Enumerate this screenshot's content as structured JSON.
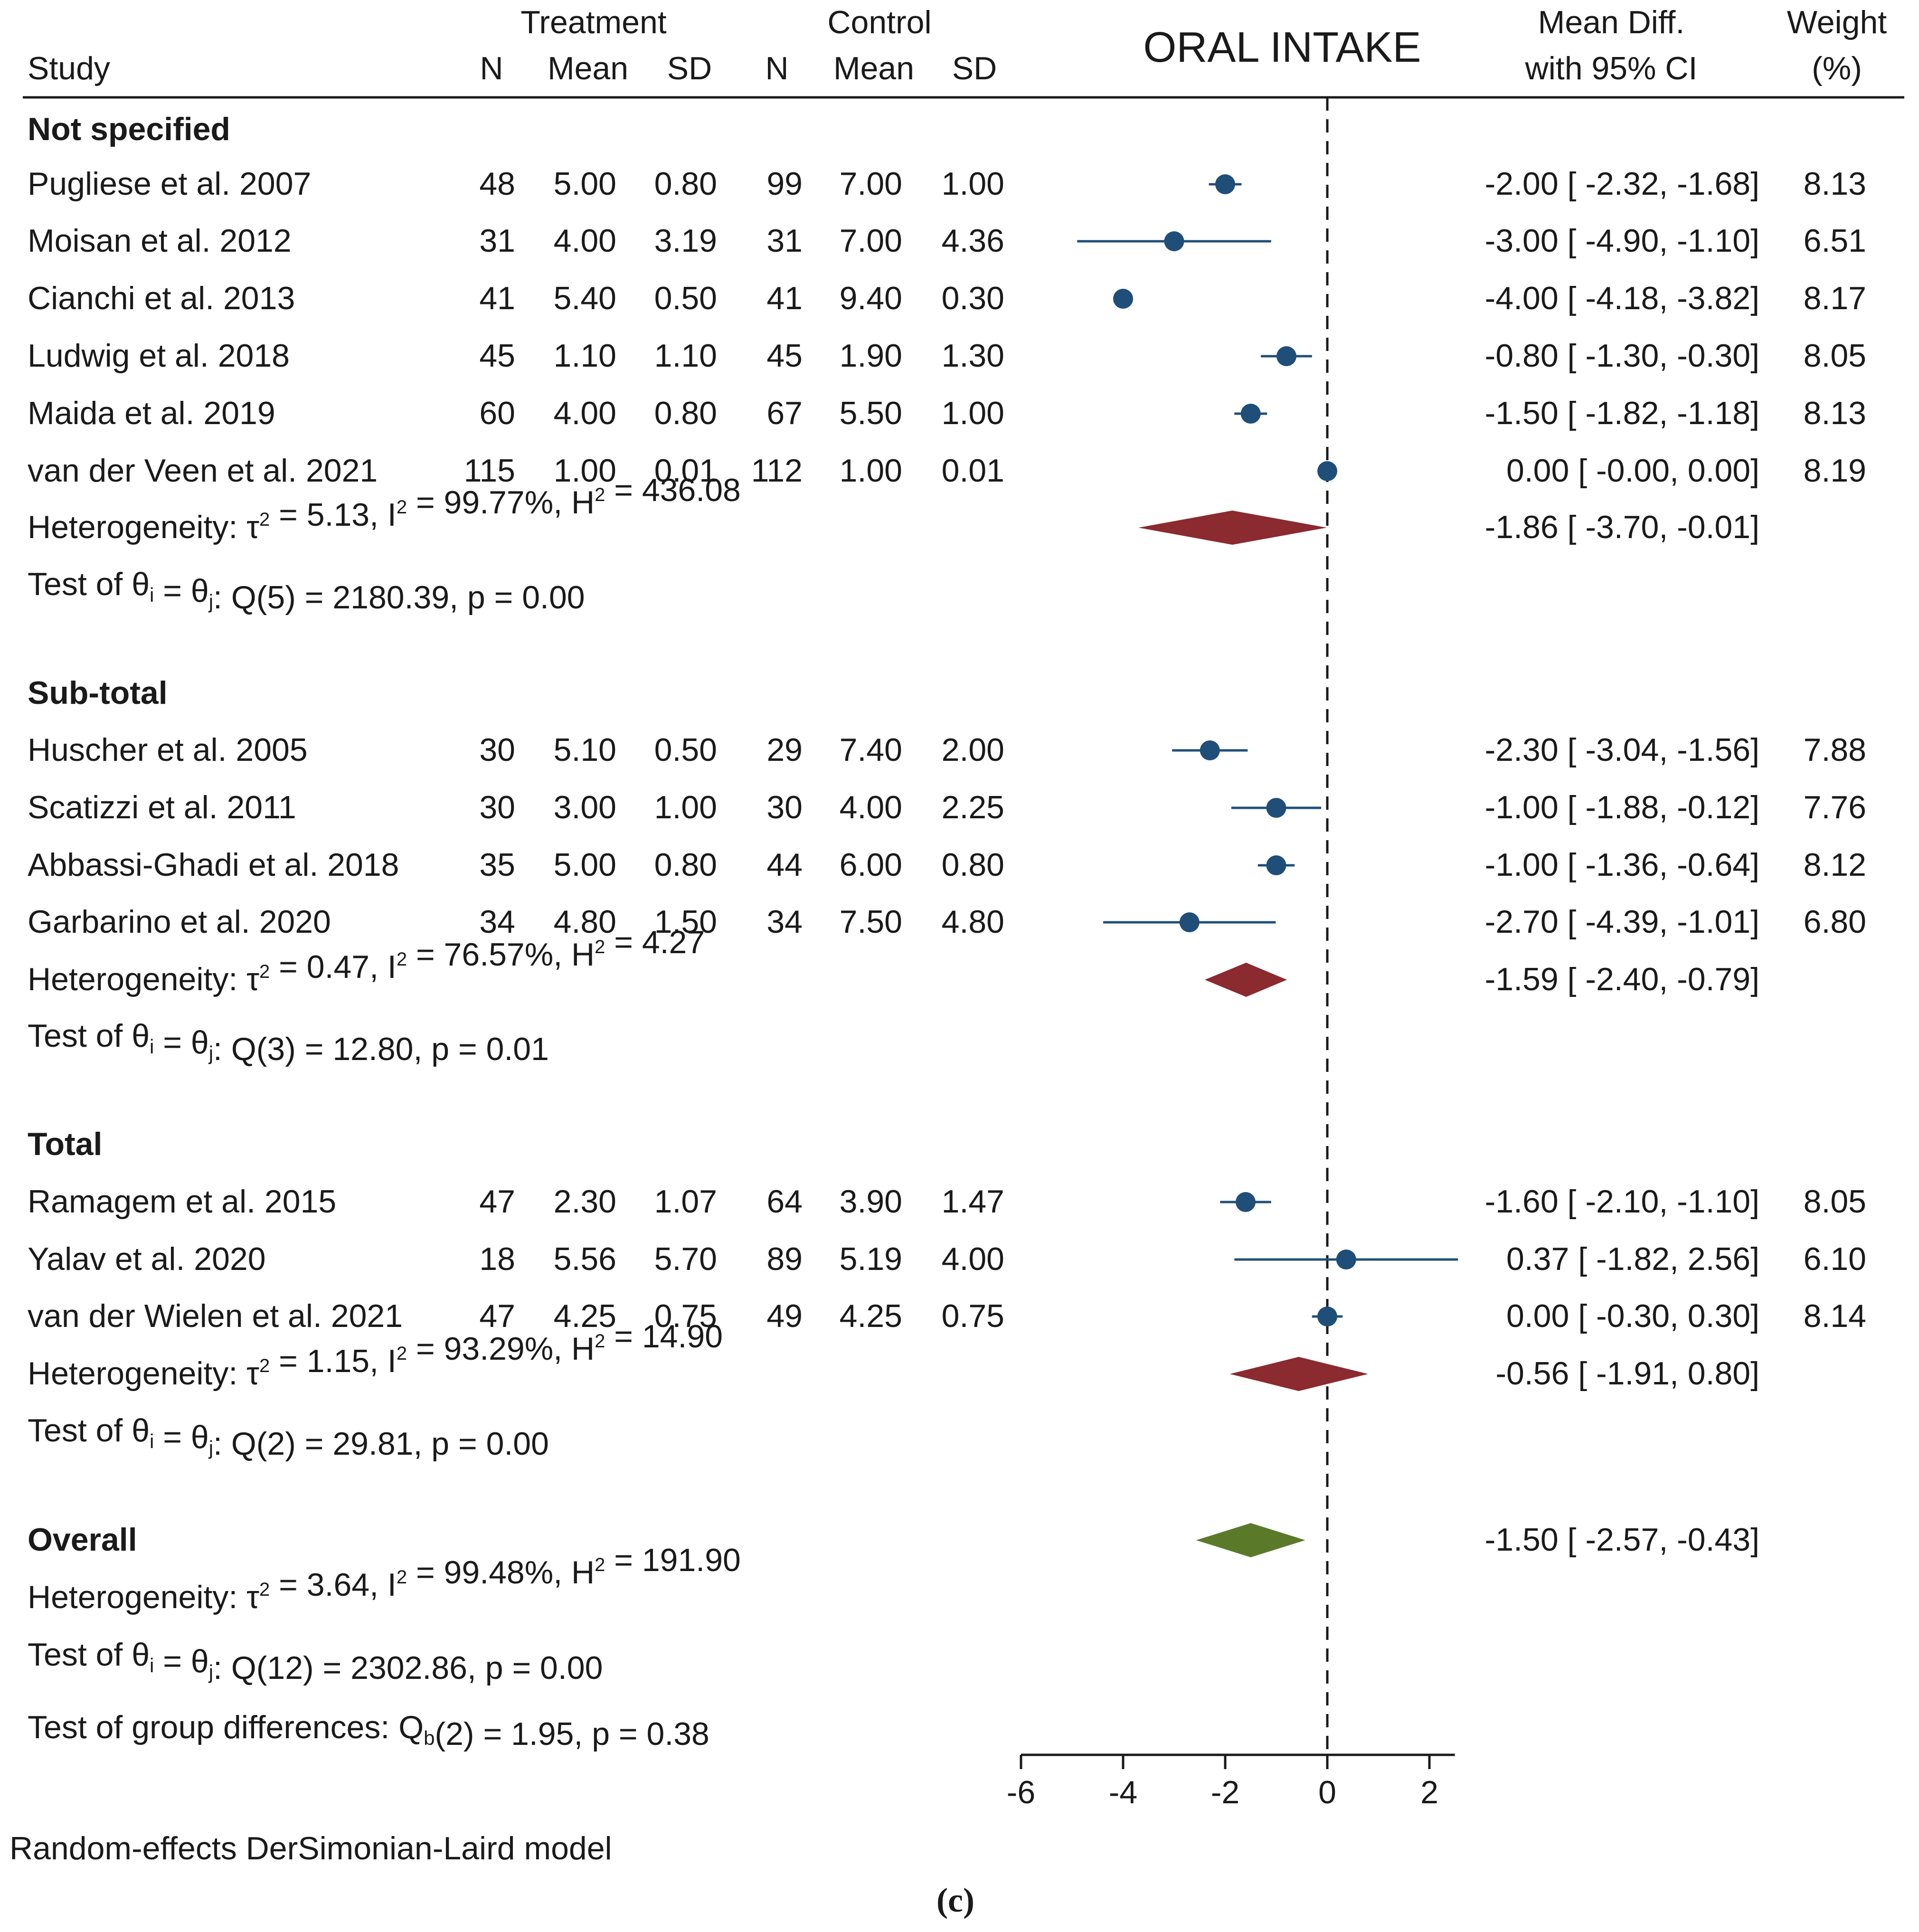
{
  "chart_data": {
    "type": "forest",
    "title": "ORAL INTAKE",
    "header": {
      "study": "Study",
      "treatment": "Treatment",
      "control": "Control",
      "n": "N",
      "mean": "Mean",
      "sd": "SD",
      "effect_line1": "Mean Diff.",
      "effect_line2": "with 95% CI",
      "weight_line1": "Weight",
      "weight_line2": "(%)"
    },
    "xaxis": {
      "ticks": [
        -6,
        -4,
        -2,
        0,
        2
      ],
      "tick_labels": [
        "-6",
        "-4",
        "-2",
        "0",
        "2"
      ],
      "range": [
        -6,
        2.5
      ],
      "null_line": 0
    },
    "groups": [
      {
        "name": "Not specified",
        "studies": [
          {
            "label": "Pugliese et al. 2007",
            "t_n": "48",
            "t_mean": "5.00",
            "t_sd": "0.80",
            "c_n": "99",
            "c_mean": "7.00",
            "c_sd": "1.00",
            "md": -2.0,
            "lo": -2.32,
            "hi": -1.68,
            "ci_text": "-2.00 [ -2.32,  -1.68]",
            "weight": "8.13"
          },
          {
            "label": "Moisan et al. 2012",
            "t_n": "31",
            "t_mean": "4.00",
            "t_sd": "3.19",
            "c_n": "31",
            "c_mean": "7.00",
            "c_sd": "4.36",
            "md": -3.0,
            "lo": -4.9,
            "hi": -1.1,
            "ci_text": "-3.00 [ -4.90,  -1.10]",
            "weight": "6.51"
          },
          {
            "label": "Cianchi et al. 2013",
            "t_n": "41",
            "t_mean": "5.40",
            "t_sd": "0.50",
            "c_n": "41",
            "c_mean": "9.40",
            "c_sd": "0.30",
            "md": -4.0,
            "lo": -4.18,
            "hi": -3.82,
            "ci_text": "-4.00 [ -4.18,  -3.82]",
            "weight": "8.17"
          },
          {
            "label": "Ludwig et al. 2018",
            "t_n": "45",
            "t_mean": "1.10",
            "t_sd": "1.10",
            "c_n": "45",
            "c_mean": "1.90",
            "c_sd": "1.30",
            "md": -0.8,
            "lo": -1.3,
            "hi": -0.3,
            "ci_text": "-0.80 [ -1.30,  -0.30]",
            "weight": "8.05"
          },
          {
            "label": "Maida et al. 2019",
            "t_n": "60",
            "t_mean": "4.00",
            "t_sd": "0.80",
            "c_n": "67",
            "c_mean": "5.50",
            "c_sd": "1.00",
            "md": -1.5,
            "lo": -1.82,
            "hi": -1.18,
            "ci_text": "-1.50 [ -1.82,  -1.18]",
            "weight": "8.13"
          },
          {
            "label": "van der Veen  et al. 2021",
            "t_n": "115",
            "t_mean": "1.00",
            "t_sd": "0.01",
            "c_n": "112",
            "c_mean": "1.00",
            "c_sd": "0.01",
            "md": 0.0,
            "lo": -0.0,
            "hi": 0.0,
            "ci_text": "0.00 [ -0.00,   0.00]",
            "weight": "8.19"
          }
        ],
        "pooled": {
          "md": -1.86,
          "lo": -3.7,
          "hi": -0.01,
          "ci_text": "-1.86 [ -3.70,  -0.01]"
        },
        "heterogeneity": {
          "tau2": "5.13",
          "i2": "99.77%",
          "h2": "436.08"
        },
        "q_test": {
          "df": "5",
          "q": "2180.39",
          "p": "0.00"
        }
      },
      {
        "name": "Sub-total",
        "studies": [
          {
            "label": "Huscher et al. 2005",
            "t_n": "30",
            "t_mean": "5.10",
            "t_sd": "0.50",
            "c_n": "29",
            "c_mean": "7.40",
            "c_sd": "2.00",
            "md": -2.3,
            "lo": -3.04,
            "hi": -1.56,
            "ci_text": "-2.30 [ -3.04,  -1.56]",
            "weight": "7.88"
          },
          {
            "label": "Scatizzi et al. 2011",
            "t_n": "30",
            "t_mean": "3.00",
            "t_sd": "1.00",
            "c_n": "30",
            "c_mean": "4.00",
            "c_sd": "2.25",
            "md": -1.0,
            "lo": -1.88,
            "hi": -0.12,
            "ci_text": "-1.00 [ -1.88,  -0.12]",
            "weight": "7.76"
          },
          {
            "label": "Abbassi-Ghadi et al. 2018",
            "t_n": "35",
            "t_mean": "5.00",
            "t_sd": "0.80",
            "c_n": "44",
            "c_mean": "6.00",
            "c_sd": "0.80",
            "md": -1.0,
            "lo": -1.36,
            "hi": -0.64,
            "ci_text": "-1.00 [ -1.36,  -0.64]",
            "weight": "8.12"
          },
          {
            "label": "Garbarino et al. 2020",
            "t_n": "34",
            "t_mean": "4.80",
            "t_sd": "1.50",
            "c_n": "34",
            "c_mean": "7.50",
            "c_sd": "4.80",
            "md": -2.7,
            "lo": -4.39,
            "hi": -1.01,
            "ci_text": "-2.70 [ -4.39,  -1.01]",
            "weight": "6.80"
          }
        ],
        "pooled": {
          "md": -1.59,
          "lo": -2.4,
          "hi": -0.79,
          "ci_text": "-1.59 [ -2.40,  -0.79]"
        },
        "heterogeneity": {
          "tau2": "0.47",
          "i2": "76.57%",
          "h2": "4.27"
        },
        "q_test": {
          "df": "3",
          "q": "12.80",
          "p": "0.01"
        }
      },
      {
        "name": "Total",
        "studies": [
          {
            "label": "Ramagem et al. 2015",
            "t_n": "47",
            "t_mean": "2.30",
            "t_sd": "1.07",
            "c_n": "64",
            "c_mean": "3.90",
            "c_sd": "1.47",
            "md": -1.6,
            "lo": -2.1,
            "hi": -1.1,
            "ci_text": "-1.60 [ -2.10,  -1.10]",
            "weight": "8.05"
          },
          {
            "label": "Yalav et al. 2020",
            "t_n": "18",
            "t_mean": "5.56",
            "t_sd": "5.70",
            "c_n": "89",
            "c_mean": "5.19",
            "c_sd": "4.00",
            "md": 0.37,
            "lo": -1.82,
            "hi": 2.56,
            "ci_text": "0.37 [ -1.82,   2.56]",
            "weight": "6.10"
          },
          {
            "label": "van der Wielen et al. 2021",
            "t_n": "47",
            "t_mean": "4.25",
            "t_sd": "0.75",
            "c_n": "49",
            "c_mean": "4.25",
            "c_sd": "0.75",
            "md": 0.0,
            "lo": -0.3,
            "hi": 0.3,
            "ci_text": "0.00 [ -0.30,   0.30]",
            "weight": "8.14"
          }
        ],
        "pooled": {
          "md": -0.56,
          "lo": -1.91,
          "hi": 0.8,
          "ci_text": "-0.56 [ -1.91,   0.80]"
        },
        "heterogeneity": {
          "tau2": "1.15",
          "i2": "93.29%",
          "h2": "14.90"
        },
        "q_test": {
          "df": "2",
          "q": "29.81",
          "p": "0.00"
        }
      }
    ],
    "overall": {
      "name": "Overall",
      "md": -1.5,
      "lo": -2.57,
      "hi": -0.43,
      "ci_text": "-1.50 [ -2.57,  -0.43]",
      "heterogeneity": {
        "tau2": "3.64",
        "i2": "99.48%",
        "h2": "191.90"
      },
      "q_test": {
        "df": "12",
        "q": "2302.86",
        "p": "0.00"
      }
    },
    "group_test": {
      "df": "2",
      "q": "1.95",
      "p": "0.38"
    },
    "footnote": "Random-effects DerSimonian-Laird model",
    "panel_label": "(c)",
    "colors": {
      "study_marker": "#1f4e79",
      "group_diamond": "#8b2a2f",
      "overall_diamond": "#5a7a2a",
      "text": "#1a1a1a",
      "axis": "#1a1a1a"
    }
  }
}
